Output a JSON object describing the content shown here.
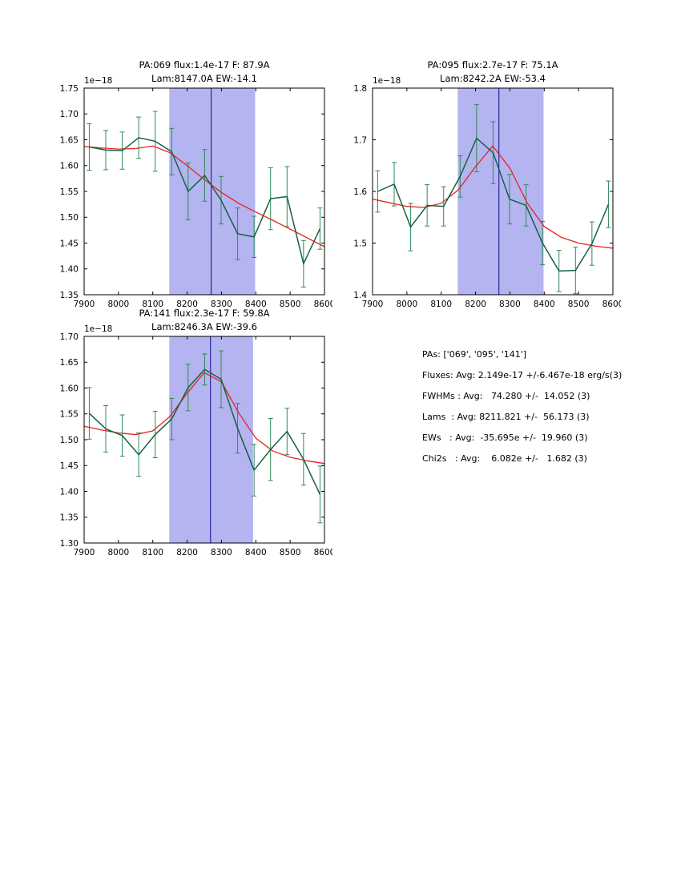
{
  "style": {
    "band_color": "#b4b4f0",
    "vline_color": "#26269e",
    "data_color": "#146242",
    "err_color": "#2e8b57",
    "fit_color": "#e62222",
    "axis_color": "#000000",
    "background": "#ffffff"
  },
  "stats": {
    "lines": [
      "PAs: ['069', '095', '141']",
      "Fluxes: Avg: 2.149e-17 +/-6.467e-18 erg/s(3)",
      "FWHMs : Avg:   74.280 +/-  14.052 (3)",
      "Lams  : Avg: 8211.821 +/-  56.173 (3)",
      "EWs   : Avg:  -35.695e +/-  19.960 (3)",
      "Chi2s   : Avg:    6.082e +/-   1.682 (3)"
    ]
  },
  "chart_data": [
    {
      "type": "line",
      "title_line1": "PA:069 flux:1.4e-17 F: 87.9A",
      "title_line2": "Lam:8147.0A EW:-14.1",
      "offset_label": "1e−18",
      "xlim": [
        7900,
        8600
      ],
      "ylim": [
        1.35,
        1.75
      ],
      "xticks": [
        7900,
        8000,
        8100,
        8200,
        8300,
        8400,
        8500,
        8600
      ],
      "yticks": [
        1.35,
        1.4,
        1.45,
        1.5,
        1.55,
        1.6,
        1.65,
        1.7,
        1.75
      ],
      "ytick_decimals": 2,
      "band": [
        8148,
        8398
      ],
      "vline": 8270,
      "x": [
        7915,
        7963,
        8011,
        8059,
        8107,
        8155,
        8203,
        8251,
        8299,
        8347,
        8395,
        8443,
        8491,
        8539,
        8587
      ],
      "y": [
        1.636,
        1.63,
        1.629,
        1.654,
        1.647,
        1.627,
        1.55,
        1.581,
        1.533,
        1.468,
        1.462,
        1.536,
        1.54,
        1.41,
        1.478
      ],
      "yerr": [
        0.045,
        0.038,
        0.036,
        0.04,
        0.058,
        0.045,
        0.055,
        0.05,
        0.046,
        0.05,
        0.04,
        0.06,
        0.058,
        0.045,
        0.04
      ],
      "fit_x": [
        7900,
        7950,
        8000,
        8050,
        8100,
        8150,
        8200,
        8250,
        8300,
        8350,
        8400,
        8450,
        8500,
        8550,
        8600
      ],
      "fit_y": [
        1.637,
        1.634,
        1.632,
        1.633,
        1.638,
        1.625,
        1.6,
        1.573,
        1.548,
        1.527,
        1.51,
        1.494,
        1.477,
        1.46,
        1.443
      ]
    },
    {
      "type": "line",
      "title_line1": "PA:095 flux:2.7e-17 F: 75.1A",
      "title_line2": "Lam:8242.2A EW:-53.4",
      "offset_label": "1e−18",
      "xlim": [
        7900,
        8600
      ],
      "ylim": [
        1.4,
        1.8
      ],
      "xticks": [
        7900,
        8000,
        8100,
        8200,
        8300,
        8400,
        8500,
        8600
      ],
      "yticks": [
        1.4,
        1.5,
        1.6,
        1.7,
        1.8
      ],
      "ytick_decimals": 1,
      "band": [
        8148,
        8398
      ],
      "vline": 8268,
      "x": [
        7915,
        7963,
        8011,
        8059,
        8107,
        8155,
        8203,
        8251,
        8299,
        8347,
        8395,
        8443,
        8491,
        8539,
        8587
      ],
      "y": [
        1.6,
        1.614,
        1.531,
        1.573,
        1.571,
        1.629,
        1.703,
        1.675,
        1.585,
        1.573,
        1.5,
        1.446,
        1.447,
        1.499,
        1.575
      ],
      "yerr": [
        0.04,
        0.042,
        0.046,
        0.04,
        0.038,
        0.04,
        0.065,
        0.06,
        0.048,
        0.04,
        0.042,
        0.04,
        0.045,
        0.042,
        0.045
      ],
      "fit_x": [
        7900,
        7950,
        8000,
        8050,
        8100,
        8150,
        8200,
        8250,
        8300,
        8350,
        8400,
        8450,
        8500,
        8550,
        8600
      ],
      "fit_y": [
        1.585,
        1.578,
        1.571,
        1.569,
        1.577,
        1.603,
        1.648,
        1.688,
        1.645,
        1.578,
        1.532,
        1.511,
        1.5,
        1.494,
        1.49
      ]
    },
    {
      "type": "line",
      "title_line1": "PA:141 flux:2.3e-17 F: 59.8A",
      "title_line2": "Lam:8246.3A EW:-39.6",
      "offset_label": "1e−18",
      "xlim": [
        7900,
        8600
      ],
      "ylim": [
        1.3,
        1.7
      ],
      "xticks": [
        7900,
        8000,
        8100,
        8200,
        8300,
        8400,
        8500,
        8600
      ],
      "yticks": [
        1.3,
        1.35,
        1.4,
        1.45,
        1.5,
        1.55,
        1.6,
        1.65,
        1.7
      ],
      "ytick_decimals": 2,
      "band": [
        8148,
        8392
      ],
      "vline": 8268,
      "x": [
        7915,
        7963,
        8011,
        8059,
        8107,
        8155,
        8203,
        8251,
        8299,
        8347,
        8395,
        8443,
        8491,
        8539,
        8587
      ],
      "y": [
        1.551,
        1.521,
        1.508,
        1.471,
        1.51,
        1.54,
        1.601,
        1.636,
        1.617,
        1.522,
        1.441,
        1.481,
        1.516,
        1.462,
        1.394
      ],
      "yerr": [
        0.05,
        0.045,
        0.04,
        0.042,
        0.045,
        0.04,
        0.045,
        0.03,
        0.055,
        0.048,
        0.05,
        0.06,
        0.045,
        0.05,
        0.055
      ],
      "fit_x": [
        7900,
        7950,
        8000,
        8050,
        8100,
        8150,
        8200,
        8250,
        8300,
        8350,
        8400,
        8450,
        8500,
        8550,
        8600
      ],
      "fit_y": [
        1.526,
        1.519,
        1.513,
        1.51,
        1.517,
        1.545,
        1.59,
        1.63,
        1.612,
        1.552,
        1.503,
        1.478,
        1.466,
        1.459,
        1.454
      ]
    }
  ]
}
